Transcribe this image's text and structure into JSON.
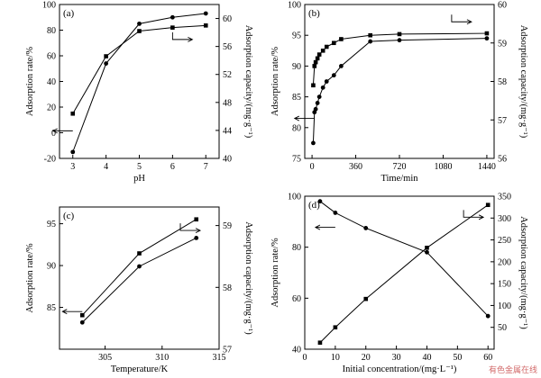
{
  "watermark": "有色金属在线",
  "chart_data": [
    {
      "type": "line",
      "label": "(a)",
      "xlabel": "pH",
      "ylabel": "Adsorption rate/%",
      "y2label": "Adsorption capacity/(mg·g⁻¹)",
      "xlim": [
        2.6,
        7.4
      ],
      "ylim": [
        -20,
        100
      ],
      "y2lim": [
        40,
        62
      ],
      "xticks": [
        3,
        4,
        5,
        6,
        7
      ],
      "yticks": [
        -20,
        0,
        20,
        40,
        60,
        80,
        100
      ],
      "y2ticks": [
        40,
        44,
        48,
        52,
        56,
        60
      ],
      "series": [
        {
          "marker": "square",
          "axis": "right",
          "x": [
            3,
            4,
            5,
            6,
            7
          ],
          "values": [
            46.4,
            54.6,
            58.2,
            58.7,
            59.0
          ]
        },
        {
          "marker": "circle",
          "axis": "left",
          "x": [
            3,
            4,
            5,
            6,
            7
          ],
          "values": [
            -15.0,
            54.0,
            85.0,
            90.0,
            93.0
          ]
        }
      ],
      "arrows": [
        {
          "x": 3.0,
          "y": 1.5,
          "dir": "left",
          "axis": "left"
        },
        {
          "x": 6.0,
          "y": 57.0,
          "dir": "right",
          "axis": "right"
        }
      ]
    },
    {
      "type": "line",
      "label": "(b)",
      "xlabel": "Time/min",
      "ylabel": "Adsorption rate/%",
      "y2label": "Adsorption capacity/(mg·g⁻¹)",
      "xlim": [
        -60,
        1500
      ],
      "ylim": [
        75,
        100
      ],
      "y2lim": [
        56,
        60
      ],
      "xticks": [
        0,
        360,
        720,
        1080,
        1440
      ],
      "yticks": [
        75,
        80,
        85,
        90,
        95,
        100
      ],
      "y2ticks": [
        56,
        57,
        58,
        59,
        60
      ],
      "series": [
        {
          "marker": "square",
          "axis": "right",
          "x": [
            10,
            20,
            30,
            45,
            60,
            90,
            120,
            180,
            240,
            480,
            720,
            1440
          ],
          "values": [
            57.9,
            58.4,
            58.5,
            58.6,
            58.7,
            58.8,
            58.9,
            59.0,
            59.1,
            59.2,
            59.23,
            59.25
          ]
        },
        {
          "marker": "circle",
          "axis": "left",
          "x": [
            10,
            20,
            30,
            45,
            60,
            90,
            120,
            180,
            240,
            480,
            720,
            1440
          ],
          "values": [
            77.5,
            82.5,
            83.0,
            84.0,
            85.0,
            86.5,
            87.5,
            88.5,
            90.0,
            94.0,
            94.2,
            94.5
          ]
        }
      ],
      "arrows": [
        {
          "x": 20,
          "y": 81.5,
          "dir": "left",
          "axis": "left"
        },
        {
          "x": 1150,
          "y": 59.55,
          "dir": "right",
          "axis": "right"
        }
      ]
    },
    {
      "type": "line",
      "label": "(c)",
      "xlabel": "Temperature/K",
      "ylabel": "Adsorption rate/%",
      "y2label": "Adsorption capacity/(mg·g⁻¹)",
      "xlim": [
        301,
        315
      ],
      "ylim": [
        80,
        97
      ],
      "y2lim": [
        57,
        59.3
      ],
      "xticks": [
        305,
        310,
        315
      ],
      "yticks": [
        85,
        90,
        95
      ],
      "y2ticks": [
        57,
        58,
        59
      ],
      "series": [
        {
          "marker": "square",
          "axis": "right",
          "x": [
            303,
            308,
            313
          ],
          "values": [
            57.55,
            58.55,
            59.1
          ]
        },
        {
          "marker": "circle",
          "axis": "left",
          "x": [
            303,
            308,
            313
          ],
          "values": [
            83.2,
            89.9,
            93.3
          ]
        }
      ],
      "arrows": [
        {
          "x": 303,
          "y": 84.5,
          "dir": "left",
          "axis": "left"
        },
        {
          "x": 311.6,
          "y": 58.92,
          "dir": "right",
          "axis": "right"
        }
      ]
    },
    {
      "type": "line",
      "label": "(d)",
      "xlabel": "Initial concentration/(mg·L⁻¹)",
      "ylabel": "Adsorption rate/%",
      "y2label": "Adsorption capacity/(mg·g⁻¹)",
      "xlim": [
        0,
        62
      ],
      "ylim": [
        40,
        100
      ],
      "y2lim": [
        0,
        350
      ],
      "xticks": [
        0,
        10,
        20,
        30,
        40,
        50,
        60
      ],
      "yticks": [
        40,
        60,
        80,
        100
      ],
      "y2ticks": [
        50,
        100,
        150,
        200,
        250,
        300,
        350
      ],
      "series": [
        {
          "marker": "square",
          "axis": "right",
          "x": [
            5,
            10,
            20,
            40,
            60
          ],
          "values": [
            15,
            50,
            115,
            232,
            330
          ]
        },
        {
          "marker": "circle",
          "axis": "left",
          "x": [
            5,
            10,
            20,
            40,
            60
          ],
          "values": [
            98,
            93.5,
            87.5,
            78,
            53
          ]
        }
      ],
      "arrows": [
        {
          "x": 10,
          "y": 87.8,
          "dir": "left",
          "axis": "left"
        },
        {
          "x": 52,
          "y": 302,
          "dir": "right",
          "axis": "right"
        }
      ]
    }
  ]
}
